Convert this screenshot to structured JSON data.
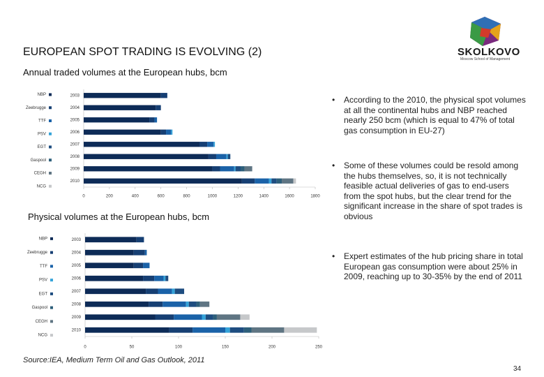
{
  "header": {
    "title": "EUROPEAN SPOT TRADING IS EVOLVING (2)",
    "logo": "SKOLKOVO",
    "tagline": "Moscow School of Management"
  },
  "chart_data": [
    {
      "type": "bar",
      "title": "Annual traded volumes at the European hubs, bcm",
      "categories": [
        "2003",
        "2004",
        "2005",
        "2006",
        "2007",
        "2008",
        "2009",
        "2010"
      ],
      "xlim": [
        0,
        1800
      ],
      "xticks": [
        0,
        200,
        400,
        600,
        800,
        1000,
        1200,
        1400,
        1600,
        1800
      ],
      "series": [
        {
          "name": "NBP",
          "color": "#0d2b57",
          "values": [
            600,
            560,
            510,
            600,
            900,
            970,
            1000,
            1230
          ]
        },
        {
          "name": "Zeebrugge",
          "color": "#163f73",
          "values": [
            50,
            40,
            40,
            40,
            60,
            60,
            60,
            100
          ]
        },
        {
          "name": "TTF",
          "color": "#1a62a8",
          "values": [
            0,
            0,
            20,
            40,
            50,
            80,
            110,
            110
          ]
        },
        {
          "name": "PSV",
          "color": "#34a3d9",
          "values": [
            0,
            0,
            0,
            10,
            10,
            10,
            10,
            20
          ]
        },
        {
          "name": "EGT",
          "color": "#1e4d80",
          "values": [
            0,
            0,
            0,
            0,
            0,
            20,
            40,
            40
          ]
        },
        {
          "name": "Gaspool",
          "color": "#2d5f7a",
          "values": [
            0,
            0,
            0,
            0,
            0,
            0,
            30,
            40
          ]
        },
        {
          "name": "CEGH",
          "color": "#5f7583",
          "values": [
            0,
            0,
            0,
            0,
            0,
            0,
            60,
            90
          ]
        },
        {
          "name": "NCG",
          "color": "#c6c8ca",
          "values": [
            0,
            0,
            0,
            0,
            0,
            0,
            0,
            20
          ]
        }
      ]
    },
    {
      "type": "bar",
      "title": "Physical volumes at the European hubs, bcm",
      "categories": [
        "2003",
        "2004",
        "2005",
        "2006",
        "2007",
        "2008",
        "2009",
        "2010"
      ],
      "xlim": [
        0,
        250
      ],
      "xticks": [
        0,
        50,
        100,
        150,
        200,
        250
      ],
      "series": [
        {
          "name": "NBP",
          "color": "#0d2b57",
          "values": [
            55,
            52,
            52,
            62,
            65,
            68,
            75,
            90
          ]
        },
        {
          "name": "Zeebrugge",
          "color": "#163f73",
          "values": [
            8,
            12,
            10,
            12,
            13,
            15,
            20,
            25
          ]
        },
        {
          "name": "TTF",
          "color": "#1a62a8",
          "values": [
            0,
            2,
            7,
            10,
            15,
            25,
            30,
            35
          ]
        },
        {
          "name": "PSV",
          "color": "#34a3d9",
          "values": [
            0,
            0,
            0,
            2,
            3,
            3,
            4,
            5
          ]
        },
        {
          "name": "EGT",
          "color": "#1e4d80",
          "values": [
            0,
            0,
            0,
            3,
            10,
            8,
            8,
            15
          ]
        },
        {
          "name": "Gaspool",
          "color": "#2d5f7a",
          "values": [
            0,
            0,
            0,
            0,
            0,
            4,
            4,
            8
          ]
        },
        {
          "name": "CEGH",
          "color": "#5f7583",
          "values": [
            0,
            0,
            0,
            0,
            0,
            10,
            25,
            35
          ]
        },
        {
          "name": "NCG",
          "color": "#c6c8ca",
          "values": [
            0,
            0,
            0,
            0,
            0,
            0,
            10,
            35
          ]
        }
      ]
    }
  ],
  "bullets": [
    "According to the 2010, the physical spot volumes at all the continental hubs and NBP reached nearly 250 bcm (which is equal to 47% of total gas consumption in EU-27)",
    "Some of these volumes could be resold among the hubs themselves, so, it is not technically feasible actual deliveries of gas to end-users from the spot hubs, but the clear trend for the significant increase in the share of spot trades is obvious",
    "Expert estimates of the hub pricing share in total European gas consumption were about 25% in 2009, reaching up to 30-35% by the end of 2011"
  ],
  "source": "Source:IEA, Medium Term Oil and Gas Outlook, 2011",
  "page_number": "34"
}
